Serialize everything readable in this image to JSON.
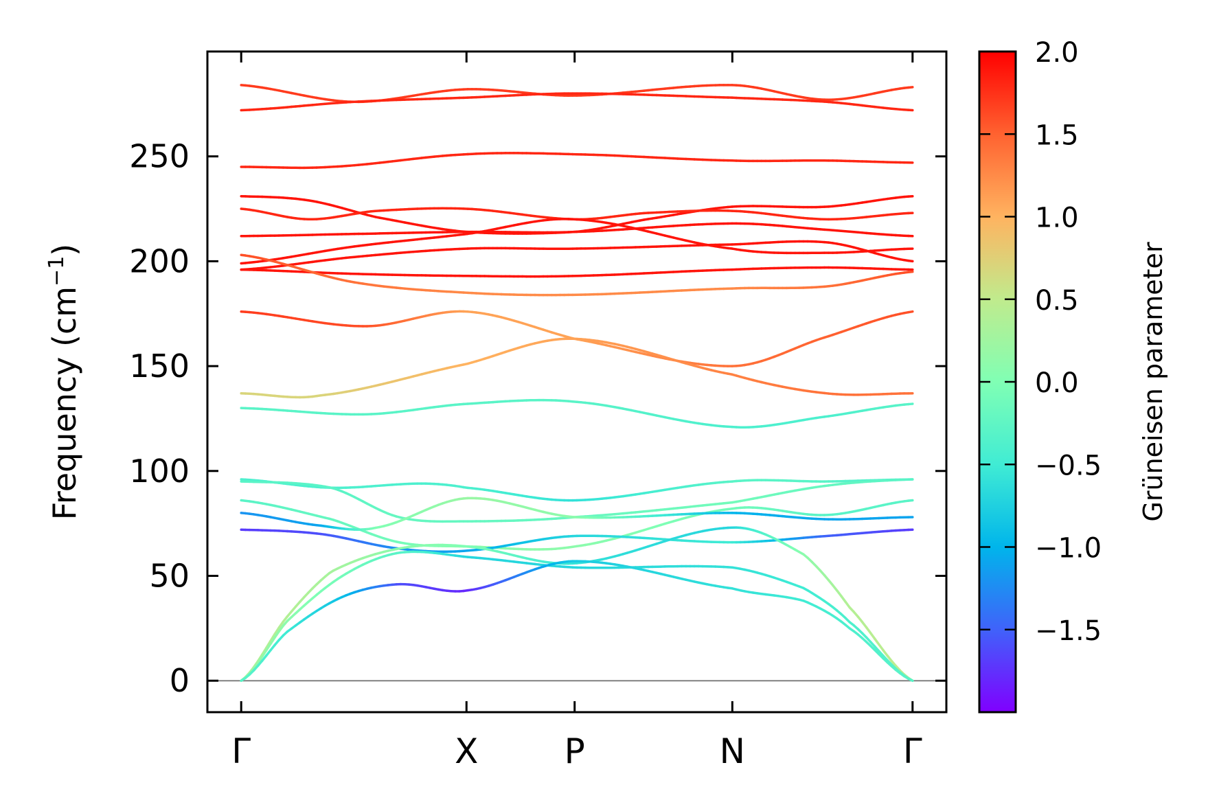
{
  "chart_data": {
    "type": "line",
    "subtype": "phonon band structure colored by Grüneisen parameter",
    "ylabel": "Frequency (cm⁻¹)",
    "ylabel_main": "Frequency (cm",
    "ylabel_sup": "−1",
    "ylabel_end": ")",
    "ylim": [
      -15,
      300
    ],
    "yticks": [
      0,
      50,
      100,
      150,
      200,
      250
    ],
    "ytick_labels": [
      "0",
      "50",
      "100",
      "150",
      "200",
      "250"
    ],
    "x_path_positions": [
      0,
      1,
      1.48,
      2.18,
      2.98
    ],
    "xlim": [
      -0.15,
      3.13
    ],
    "x_high_symmetry_labels": [
      "Γ",
      "X",
      "P",
      "N",
      "Γ"
    ],
    "grid": false,
    "zero_line": true,
    "colorbar": {
      "label": "Grüneisen parameter",
      "range": [
        -2.0,
        2.0
      ],
      "ticks": [
        2.0,
        1.5,
        1.0,
        0.5,
        0.0,
        -0.5,
        -1.0,
        -1.5
      ],
      "tick_labels": [
        "2.0",
        "1.5",
        "1.0",
        "0.5",
        "0.0",
        "−0.5",
        "−1.0",
        "−1.5"
      ],
      "colormap": "rainbow"
    },
    "series": [
      {
        "x": [
          0,
          0.5,
          1,
          1.48,
          2.18,
          2.6,
          2.98
        ],
        "y": [
          284,
          276,
          282,
          279,
          284,
          277,
          283
        ],
        "g": [
          1.7,
          1.7,
          1.7,
          1.7,
          1.7,
          1.7,
          1.7
        ]
      },
      {
        "x": [
          0,
          0.5,
          1,
          1.48,
          2.18,
          2.6,
          2.98
        ],
        "y": [
          272,
          276,
          278,
          280,
          278,
          276,
          272
        ],
        "g": [
          1.8,
          1.8,
          1.8,
          1.8,
          1.8,
          1.8,
          1.8
        ]
      },
      {
        "x": [
          0,
          0.4,
          1,
          1.48,
          2.18,
          2.6,
          2.98
        ],
        "y": [
          245,
          245,
          251,
          251,
          248,
          248,
          247
        ],
        "g": [
          1.8,
          1.8,
          1.8,
          1.8,
          1.8,
          1.8,
          1.8
        ]
      },
      {
        "x": [
          0,
          0.3,
          0.6,
          1,
          1.48,
          1.8,
          2.18,
          2.6,
          2.98
        ],
        "y": [
          231,
          229,
          221,
          214,
          214,
          220,
          226,
          226,
          231
        ],
        "g": [
          1.9,
          1.9,
          1.9,
          1.9,
          1.9,
          1.9,
          1.9,
          1.9,
          1.9
        ]
      },
      {
        "x": [
          0,
          0.3,
          0.6,
          1,
          1.48,
          1.8,
          2.18,
          2.6,
          2.98
        ],
        "y": [
          225,
          220,
          224,
          225,
          220,
          223,
          224,
          220,
          223
        ],
        "g": [
          1.8,
          1.8,
          1.8,
          1.8,
          1.8,
          1.8,
          1.8,
          1.8,
          1.8
        ]
      },
      {
        "x": [
          0,
          0.5,
          1,
          1.48,
          2.18,
          2.6,
          2.98
        ],
        "y": [
          212,
          213,
          214,
          214,
          218,
          215,
          212
        ],
        "g": [
          1.9,
          1.9,
          1.9,
          1.9,
          1.9,
          1.9,
          1.9
        ]
      },
      {
        "x": [
          0,
          0.5,
          1,
          1.48,
          2.18,
          2.6,
          2.98
        ],
        "y": [
          199,
          207,
          213,
          220,
          206,
          204,
          206
        ],
        "g": [
          1.9,
          1.9,
          1.9,
          1.9,
          1.9,
          1.9,
          1.9
        ]
      },
      {
        "x": [
          0,
          0.5,
          1,
          1.48,
          2.18,
          2.6,
          2.98
        ],
        "y": [
          196,
          202,
          206,
          206,
          208,
          209,
          200
        ],
        "g": [
          1.9,
          1.9,
          1.9,
          1.9,
          1.9,
          1.9,
          1.9
        ]
      },
      {
        "x": [
          0,
          0.5,
          1,
          1.48,
          2.18,
          2.6,
          2.98
        ],
        "y": [
          196,
          194,
          193,
          193,
          196,
          197,
          196
        ],
        "g": [
          1.9,
          1.9,
          1.9,
          1.9,
          1.9,
          1.9,
          1.9
        ]
      },
      {
        "x": [
          0,
          0.5,
          1,
          1.48,
          2.18,
          2.6,
          2.98
        ],
        "y": [
          203,
          190,
          185,
          184,
          187,
          188,
          195
        ],
        "g": [
          1.6,
          1.4,
          1.25,
          1.25,
          1.25,
          1.4,
          1.6
        ]
      },
      {
        "x": [
          0,
          0.55,
          1,
          1.48,
          2.18,
          2.6,
          2.98
        ],
        "y": [
          176,
          169,
          176,
          163,
          150,
          164,
          176
        ],
        "g": [
          1.7,
          1.6,
          1.1,
          1.1,
          1.4,
          1.5,
          1.6
        ]
      },
      {
        "x": [
          0,
          0.35,
          1,
          1.48,
          2.18,
          2.6,
          2.98
        ],
        "y": [
          137,
          136,
          151,
          163,
          146,
          137,
          137
        ],
        "g": [
          0.7,
          0.7,
          1.0,
          1.1,
          1.3,
          1.4,
          1.4
        ]
      },
      {
        "x": [
          0,
          0.55,
          1,
          1.48,
          2.18,
          2.6,
          2.98
        ],
        "y": [
          130,
          127,
          132,
          133,
          121,
          126,
          132
        ],
        "g": [
          -0.3,
          -0.3,
          -0.3,
          -0.3,
          -0.4,
          -0.4,
          -0.3
        ]
      },
      {
        "x": [
          0,
          0.4,
          0.8,
          1,
          1.48,
          2.18,
          2.6,
          2.98
        ],
        "y": [
          96,
          92,
          94,
          92,
          86,
          95,
          95,
          96
        ],
        "g": [
          -0.4,
          -0.4,
          -0.4,
          -0.4,
          -0.6,
          -0.3,
          -0.3,
          -0.4
        ]
      },
      {
        "x": [
          0,
          0.4,
          0.7,
          1,
          1.48,
          2.18,
          2.6,
          2.98
        ],
        "y": [
          95,
          92,
          78,
          76,
          78,
          85,
          93,
          96
        ],
        "g": [
          -0.3,
          -0.3,
          -0.2,
          -0.2,
          -0.2,
          -0.1,
          -0.2,
          -0.3
        ]
      },
      {
        "x": [
          0,
          0.4,
          0.7,
          1,
          1.48,
          2.18,
          2.6,
          2.98
        ],
        "y": [
          86,
          77,
          66,
          64,
          64,
          82,
          79,
          86
        ],
        "g": [
          -0.3,
          -0.2,
          -0.1,
          0.1,
          0.1,
          -0.1,
          -0.3,
          -0.3
        ]
      },
      {
        "x": [
          0,
          0.35,
          0.6,
          1,
          1.48,
          2.18,
          2.6,
          2.98
        ],
        "y": [
          80,
          74,
          73,
          87,
          78,
          80,
          77,
          78
        ],
        "g": [
          -1.2,
          -1.1,
          0.0,
          0.2,
          0.1,
          -1.0,
          -1.1,
          -1.1
        ]
      },
      {
        "x": [
          0,
          0.35,
          0.7,
          1,
          1.48,
          2.18,
          2.6,
          2.98
        ],
        "y": [
          72,
          70,
          63,
          62,
          69,
          66,
          69,
          72
        ],
        "g": [
          -1.7,
          -1.6,
          -1.2,
          -1.1,
          -0.7,
          -0.5,
          -1.5,
          -1.7
        ]
      },
      {
        "x": [
          0,
          0.2,
          0.4,
          0.7,
          1,
          1.48,
          2.18,
          2.5,
          2.7,
          2.98
        ],
        "y": [
          0,
          30,
          52,
          63,
          64,
          56,
          73,
          60,
          35,
          0
        ],
        "g": [
          0.4,
          0.4,
          0.3,
          0.1,
          0.0,
          -0.6,
          -0.7,
          0.1,
          0.4,
          0.5
        ]
      },
      {
        "x": [
          0,
          0.2,
          0.45,
          0.7,
          1,
          1.48,
          2.18,
          2.5,
          2.7,
          2.98
        ],
        "y": [
          0,
          28,
          50,
          61,
          59,
          54,
          54,
          44,
          28,
          0
        ],
        "g": [
          0.2,
          0.1,
          -0.1,
          -0.3,
          -0.7,
          -0.7,
          -0.6,
          -0.5,
          -0.4,
          -0.3
        ]
      },
      {
        "x": [
          0,
          0.2,
          0.45,
          0.7,
          1,
          1.48,
          2.18,
          2.5,
          2.7,
          2.98
        ],
        "y": [
          0,
          23,
          40,
          46,
          43,
          57,
          44,
          38,
          25,
          0
        ],
        "g": [
          -0.3,
          -0.5,
          -0.9,
          -1.6,
          -1.8,
          -0.8,
          -0.6,
          -0.5,
          -0.4,
          -0.3
        ]
      }
    ]
  }
}
